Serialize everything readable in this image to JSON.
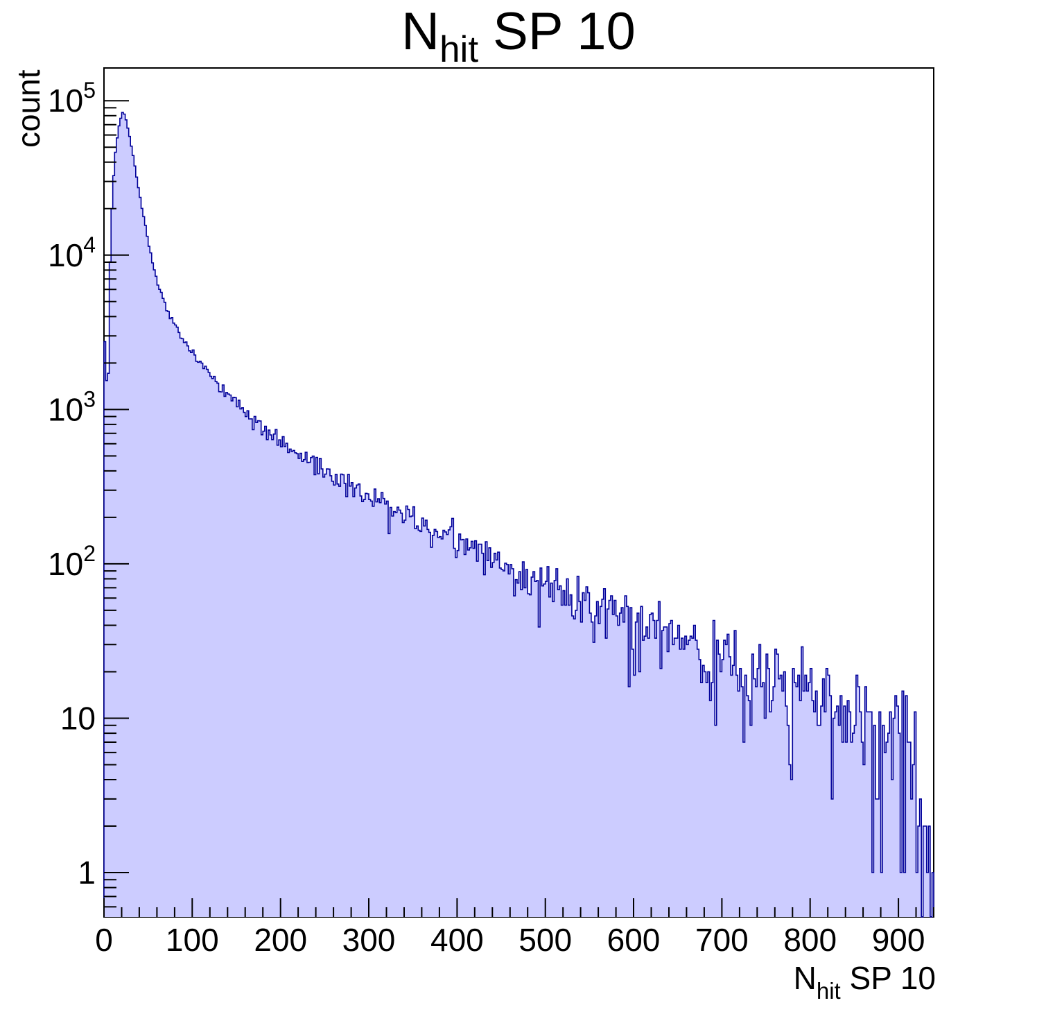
{
  "labels": {
    "title": {
      "base": "N",
      "sub": "hit",
      "rest": " SP 10"
    },
    "x_title": {
      "base": "N",
      "sub": "hit",
      "rest": " SP 10"
    }
  },
  "chart_data": {
    "type": "histogram",
    "title": "N_hit SP 10",
    "xlabel": "N_hit SP 10",
    "ylabel": "count",
    "y_scale": "log",
    "x_range": [
      0,
      940
    ],
    "y_range": [
      0.516,
      163000
    ],
    "bin_width": 2,
    "n_bins": 470,
    "x_tick_major_step": 100,
    "x_tick_minor_step": 20,
    "x_tick_labels": [
      "0",
      "100",
      "200",
      "300",
      "400",
      "500",
      "600",
      "700",
      "800",
      "900"
    ],
    "y_tick_labels": [
      {
        "base": "1"
      },
      {
        "base": "10"
      },
      {
        "base": "10",
        "exp": "2"
      },
      {
        "base": "10",
        "exp": "3"
      },
      {
        "base": "10",
        "exp": "4"
      },
      {
        "base": "10",
        "exp": "5"
      }
    ],
    "peak": {
      "x": 21,
      "count": 84000
    },
    "envelope_points": [
      [
        1,
        2700
      ],
      [
        3,
        1600
      ],
      [
        5,
        1700
      ],
      [
        7,
        9000
      ],
      [
        9,
        20000
      ],
      [
        11,
        33000
      ],
      [
        13,
        46000
      ],
      [
        15,
        58000
      ],
      [
        17,
        68000
      ],
      [
        19,
        77000
      ],
      [
        21,
        84000
      ],
      [
        23,
        82000
      ],
      [
        25,
        75000
      ],
      [
        27,
        67000
      ],
      [
        29,
        59000
      ],
      [
        31,
        51000
      ],
      [
        34,
        41000
      ],
      [
        37,
        32000
      ],
      [
        40,
        25500
      ],
      [
        44,
        19000
      ],
      [
        48,
        14200
      ],
      [
        52,
        10800
      ],
      [
        56,
        8600
      ],
      [
        60,
        7000
      ],
      [
        65,
        5650
      ],
      [
        70,
        4750
      ],
      [
        75,
        4100
      ],
      [
        80,
        3600
      ],
      [
        85,
        3200
      ],
      [
        90,
        2870
      ],
      [
        95,
        2600
      ],
      [
        100,
        2380
      ],
      [
        108,
        2050
      ],
      [
        116,
        1800
      ],
      [
        124,
        1590
      ],
      [
        132,
        1410
      ],
      [
        141,
        1230
      ],
      [
        150,
        1080
      ],
      [
        158,
        975
      ],
      [
        166,
        890
      ],
      [
        175,
        800
      ],
      [
        184,
        725
      ],
      [
        193,
        660
      ],
      [
        202,
        605
      ],
      [
        212,
        550
      ],
      [
        222,
        503
      ],
      [
        232,
        462
      ],
      [
        242,
        425
      ],
      [
        252,
        392
      ],
      [
        262,
        362
      ],
      [
        272,
        336
      ],
      [
        282,
        312
      ],
      [
        292,
        290
      ],
      [
        302,
        270
      ],
      [
        315,
        246
      ],
      [
        328,
        225
      ],
      [
        341,
        206
      ],
      [
        354,
        189
      ],
      [
        367,
        174
      ],
      [
        380,
        160
      ],
      [
        395,
        145
      ],
      [
        410,
        132
      ],
      [
        425,
        120
      ],
      [
        440,
        110
      ],
      [
        455,
        100
      ],
      [
        470,
        88
      ],
      [
        500,
        72
      ],
      [
        530,
        60
      ],
      [
        560,
        51
      ],
      [
        590,
        44
      ],
      [
        620,
        37.5
      ],
      [
        650,
        31
      ],
      [
        665,
        28.5
      ],
      [
        680,
        26
      ],
      [
        695,
        24
      ],
      [
        710,
        22
      ],
      [
        725,
        20
      ],
      [
        740,
        18.4
      ],
      [
        755,
        16.9
      ],
      [
        770,
        15.5
      ],
      [
        785,
        14.2
      ],
      [
        800,
        13
      ],
      [
        815,
        11.9
      ],
      [
        830,
        10.9
      ],
      [
        845,
        10
      ],
      [
        860,
        9.1
      ],
      [
        875,
        8.3
      ],
      [
        890,
        7.6
      ],
      [
        900,
        7
      ],
      [
        910,
        6
      ],
      [
        918,
        4.5
      ],
      [
        924,
        3
      ],
      [
        930,
        1.8
      ],
      [
        936,
        1.1
      ],
      [
        940,
        1
      ]
    ],
    "tail_overrides": {
      "924": 3,
      "926": 0,
      "928": 2,
      "932": 1,
      "934": 2,
      "936": 0,
      "938": 1
    },
    "noise_model": "poisson-like, sigma = 1.6*sqrt(n), counts quantized to integers",
    "noise_factor": 1.6,
    "seed": 11
  },
  "style": {
    "fill_color": "#ccccff",
    "line_color": "#000099",
    "axis_color": "#000000",
    "background": "#ffffff"
  }
}
